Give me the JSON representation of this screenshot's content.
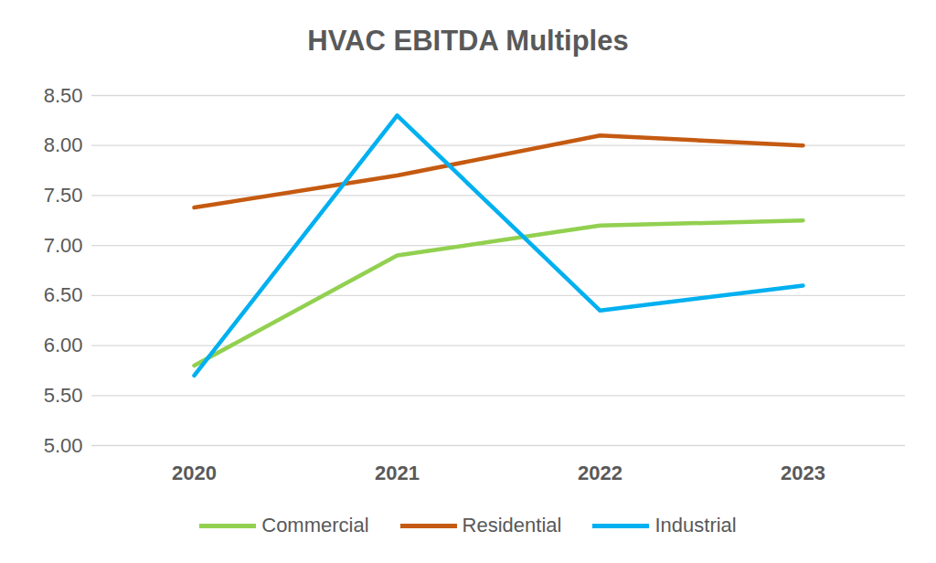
{
  "chart_data": {
    "type": "line",
    "title": "HVAC EBITDA Multiples",
    "categories": [
      "2020",
      "2021",
      "2022",
      "2023"
    ],
    "series": [
      {
        "name": "Commercial",
        "color": "#92d050",
        "values": [
          5.8,
          6.9,
          7.2,
          7.25
        ]
      },
      {
        "name": "Residential",
        "color": "#c55a11",
        "values": [
          7.38,
          7.7,
          8.1,
          8.0
        ]
      },
      {
        "name": "Industrial",
        "color": "#00b0f0",
        "values": [
          5.7,
          8.3,
          6.35,
          6.6
        ]
      }
    ],
    "ylim": [
      5,
      8.5
    ],
    "yticks": [
      {
        "value": 5,
        "label": "5.00"
      },
      {
        "value": 5.5,
        "label": "5.50"
      },
      {
        "value": 6,
        "label": "6.00"
      },
      {
        "value": 6.5,
        "label": "6.50"
      },
      {
        "value": 7,
        "label": "7.00"
      },
      {
        "value": 7.5,
        "label": "7.50"
      },
      {
        "value": 8,
        "label": "8.00"
      },
      {
        "value": 8.5,
        "label": "8.50"
      }
    ],
    "grid": true,
    "legend": "bottom"
  }
}
